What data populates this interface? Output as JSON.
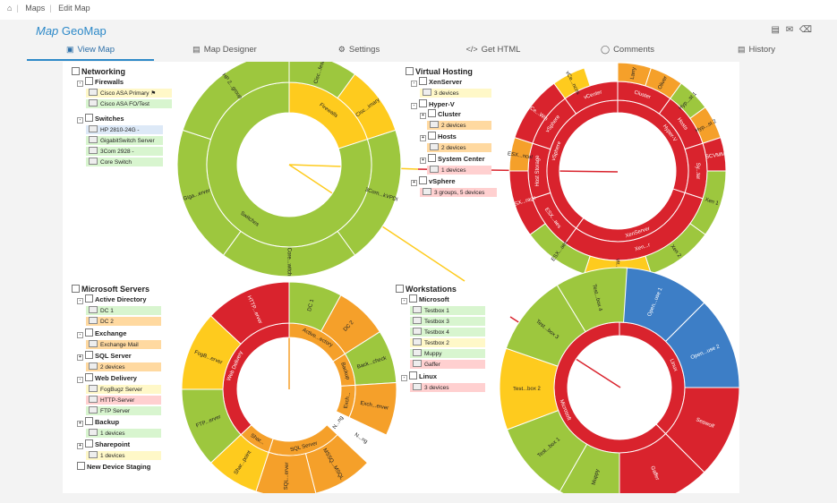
{
  "breadcrumb": {
    "home_icon": "home-icon",
    "items": [
      "Maps",
      "Edit Map"
    ]
  },
  "page": {
    "title_prefix": "Map",
    "title": "GeoMap"
  },
  "title_tools": [
    "export-icon",
    "mail-icon",
    "delete-icon"
  ],
  "tabs": [
    {
      "label": "View Map",
      "icon": "map-icon",
      "active": true
    },
    {
      "label": "Map Designer",
      "icon": "designer-icon",
      "active": false
    },
    {
      "label": "Settings",
      "icon": "gear-icon",
      "active": false
    },
    {
      "label": "Get HTML",
      "icon": "code-icon",
      "active": false
    },
    {
      "label": "Comments",
      "icon": "comment-icon",
      "active": false
    },
    {
      "label": "History",
      "icon": "history-icon",
      "active": false
    }
  ],
  "trees": {
    "networking": {
      "title": "Networking",
      "groups": [
        {
          "name": "Firewalls",
          "leaves": [
            {
              "label": "Cisco ASA Primary",
              "status": "y"
            },
            {
              "label": "Cisco ASA FO/Test",
              "status": "g"
            }
          ]
        },
        {
          "name": "Switches",
          "leaves": [
            {
              "label": "HP 2810-24G -",
              "status": "b"
            },
            {
              "label": "GigabitSwitch Server",
              "status": "g"
            },
            {
              "label": "3Com 2928 -",
              "status": "g"
            },
            {
              "label": "Core Switch",
              "status": "g"
            }
          ]
        }
      ]
    },
    "virtual": {
      "title": "Virtual Hosting",
      "groups": [
        {
          "name": "XenServer",
          "leaves": [
            {
              "label": "3 devices",
              "status": "y"
            }
          ]
        },
        {
          "name": "Hyper-V",
          "leaves": []
        },
        {
          "name": "Cluster",
          "leaves": [
            {
              "label": "2 devices",
              "status": "o"
            }
          ]
        },
        {
          "name": "Hosts",
          "leaves": [
            {
              "label": "2 devices",
              "status": "o"
            }
          ]
        },
        {
          "name": "System Center",
          "leaves": [
            {
              "label": "1 devices",
              "status": "r"
            }
          ]
        },
        {
          "name": "vSphere",
          "leaves": [
            {
              "label": "3 groups, 5 devices",
              "status": "r"
            }
          ]
        }
      ]
    },
    "microsoft": {
      "title": "Microsoft Servers",
      "groups": [
        {
          "name": "Active Directory",
          "leaves": [
            {
              "label": "DC 1",
              "status": "g"
            },
            {
              "label": "DC 2",
              "status": "o"
            }
          ]
        },
        {
          "name": "Exchange",
          "leaves": [
            {
              "label": "Exchange Mail",
              "status": "o"
            }
          ]
        },
        {
          "name": "SQL Server",
          "leaves": [
            {
              "label": "2 devices",
              "status": "o"
            }
          ]
        },
        {
          "name": "Web Delivery",
          "leaves": [
            {
              "label": "FogBugz Server",
              "status": "y"
            },
            {
              "label": "HTTP-Server",
              "status": "r"
            },
            {
              "label": "FTP Server",
              "status": "g"
            }
          ]
        },
        {
          "name": "Backup",
          "leaves": [
            {
              "label": "1 devices",
              "status": "g"
            }
          ]
        },
        {
          "name": "Sharepoint",
          "leaves": [
            {
              "label": "1 devices",
              "status": "y"
            }
          ]
        },
        {
          "name": "New Device Staging",
          "leaves": []
        }
      ]
    },
    "workstations": {
      "title": "Workstations",
      "groups": [
        {
          "name": "Microsoft",
          "leaves": [
            {
              "label": "Testbox 1",
              "status": "g"
            },
            {
              "label": "Testbox 3",
              "status": "g"
            },
            {
              "label": "Testbox 4",
              "status": "g"
            },
            {
              "label": "Testbox 2",
              "status": "y"
            },
            {
              "label": "Muppy",
              "status": "g"
            },
            {
              "label": "Gaffer",
              "status": "r"
            }
          ]
        },
        {
          "name": "Linux",
          "leaves": [
            {
              "label": "3 devices",
              "status": "r"
            }
          ]
        }
      ]
    }
  },
  "colors": {
    "green": "#9dc73e",
    "yellow": "#fecb1e",
    "orange": "#f5a02a",
    "red": "#d9232d",
    "blue": "#3d7ec6",
    "white": "#ffffff"
  },
  "sunbursts": [
    {
      "name": "networking-sunburst",
      "inner": [
        {
          "label": "Firewalls",
          "frac": 0.2,
          "color": "yellow"
        },
        {
          "label": "Switches",
          "frac": 0.8,
          "color": "green"
        }
      ],
      "outer": [
        {
          "label": "Cisc...fest",
          "frac": 0.1,
          "color": "green"
        },
        {
          "label": "Cisc...imary",
          "frac": 0.1,
          "color": "yellow"
        },
        {
          "label": "3Com...kVPDI",
          "frac": 0.2,
          "color": "green"
        },
        {
          "label": "Core...witch",
          "frac": 0.2,
          "color": "green"
        },
        {
          "label": "Giga...erver",
          "frac": 0.2,
          "color": "green"
        },
        {
          "label": "HP 2...group",
          "frac": 0.2,
          "color": "green"
        }
      ]
    },
    {
      "name": "virtual-sunburst",
      "inner": [
        {
          "label": "Hyper-V",
          "frac": 0.3,
          "color": "red"
        },
        {
          "label": "XenServer",
          "frac": 0.3,
          "color": "red"
        },
        {
          "label": "vSphere",
          "frac": 0.4,
          "color": "red"
        }
      ],
      "middle": [
        {
          "label": "Cluster",
          "frac": 0.1,
          "color": "red"
        },
        {
          "label": "Hosts",
          "frac": 0.1,
          "color": "red"
        },
        {
          "label": "Sy...ter",
          "frac": 0.1,
          "color": "red"
        },
        {
          "label": "Xen...r",
          "frac": 0.3,
          "color": "red"
        },
        {
          "label": "ESX...aes",
          "frac": 0.1,
          "color": "red"
        },
        {
          "label": "Host Storage",
          "frac": 0.1,
          "color": "red"
        },
        {
          "label": "vSphere",
          "frac": 0.1,
          "color": "red"
        },
        {
          "label": "vCenter",
          "frac": 0.1,
          "color": "red"
        }
      ],
      "outer": [
        {
          "label": "Larry",
          "frac": 0.05,
          "color": "orange"
        },
        {
          "label": "Oliver",
          "frac": 0.05,
          "color": "orange"
        },
        {
          "label": "Hyp...st 1",
          "frac": 0.05,
          "color": "green"
        },
        {
          "label": "Hyp...st 2",
          "frac": 0.05,
          "color": "orange"
        },
        {
          "label": "SCVMM",
          "frac": 0.05,
          "color": "red"
        },
        {
          "label": "Xen 1",
          "frac": 0.1,
          "color": "green"
        },
        {
          "label": "Xen 2",
          "frac": 0.1,
          "color": "green"
        },
        {
          "label": "vir...dows",
          "frac": 0.1,
          "color": "yellow"
        },
        {
          "label": "ESX...aes",
          "frac": 0.1,
          "color": "green"
        },
        {
          "label": "ESX...rage",
          "frac": 0.1,
          "color": "red"
        },
        {
          "label": "ESX...ncel",
          "frac": 0.05,
          "color": "orange"
        },
        {
          "label": "vCe...Win",
          "frac": 0.1,
          "color": "red"
        },
        {
          "label": "vCe...nces",
          "frac": 0.05,
          "color": "yellow"
        }
      ]
    },
    {
      "name": "microsoft-sunburst",
      "inner": [
        {
          "label": "Active...ectory",
          "frac": 0.16,
          "color": "orange"
        },
        {
          "label": "Backup",
          "frac": 0.08,
          "color": "orange"
        },
        {
          "label": "Exch...",
          "frac": 0.08,
          "color": "orange"
        },
        {
          "label": "N...ng",
          "frac": 0.05,
          "color": "white"
        },
        {
          "label": "SQL Server",
          "frac": 0.18,
          "color": "orange"
        },
        {
          "label": "Shar...",
          "frac": 0.08,
          "color": "orange"
        },
        {
          "label": "Web Delivery",
          "frac": 0.37,
          "color": "red"
        }
      ],
      "outer": [
        {
          "label": "DC 1",
          "frac": 0.08,
          "color": "green"
        },
        {
          "label": "DC 2",
          "frac": 0.08,
          "color": "orange"
        },
        {
          "label": "Back...check",
          "frac": 0.08,
          "color": "green"
        },
        {
          "label": "Exch...erver",
          "frac": 0.08,
          "color": "orange"
        },
        {
          "label": "N...ng",
          "frac": 0.05,
          "color": "white"
        },
        {
          "label": "MSSQ...MSQL",
          "frac": 0.09,
          "color": "orange"
        },
        {
          "label": "SQL...erver",
          "frac": 0.09,
          "color": "orange"
        },
        {
          "label": "Shar...point",
          "frac": 0.08,
          "color": "yellow"
        },
        {
          "label": "FTP...erver",
          "frac": 0.12,
          "color": "green"
        },
        {
          "label": "FogB...erver",
          "frac": 0.12,
          "color": "yellow"
        },
        {
          "label": "HTTP...erver",
          "frac": 0.13,
          "color": "red"
        }
      ]
    },
    {
      "name": "workstations-sunburst",
      "inner": [
        {
          "label": "Linux",
          "frac": 0.375,
          "color": "red"
        },
        {
          "label": "Microsoft",
          "frac": 0.625,
          "color": "red"
        }
      ],
      "outer": [
        {
          "label": "Open...use 1",
          "frac": 0.125,
          "color": "blue"
        },
        {
          "label": "Open...use 2",
          "frac": 0.125,
          "color": "blue"
        },
        {
          "label": "Seawolf",
          "frac": 0.125,
          "color": "red"
        },
        {
          "label": "Gaffer",
          "frac": 0.125,
          "color": "red"
        },
        {
          "label": "Muppy",
          "frac": 0.083,
          "color": "green"
        },
        {
          "label": "Test...box 1",
          "frac": 0.11,
          "color": "green"
        },
        {
          "label": "Test...box 2",
          "frac": 0.11,
          "color": "yellow"
        },
        {
          "label": "Test...box 3",
          "frac": 0.11,
          "color": "green"
        },
        {
          "label": "Test...box 4",
          "frac": 0.097,
          "color": "green"
        }
      ]
    }
  ]
}
